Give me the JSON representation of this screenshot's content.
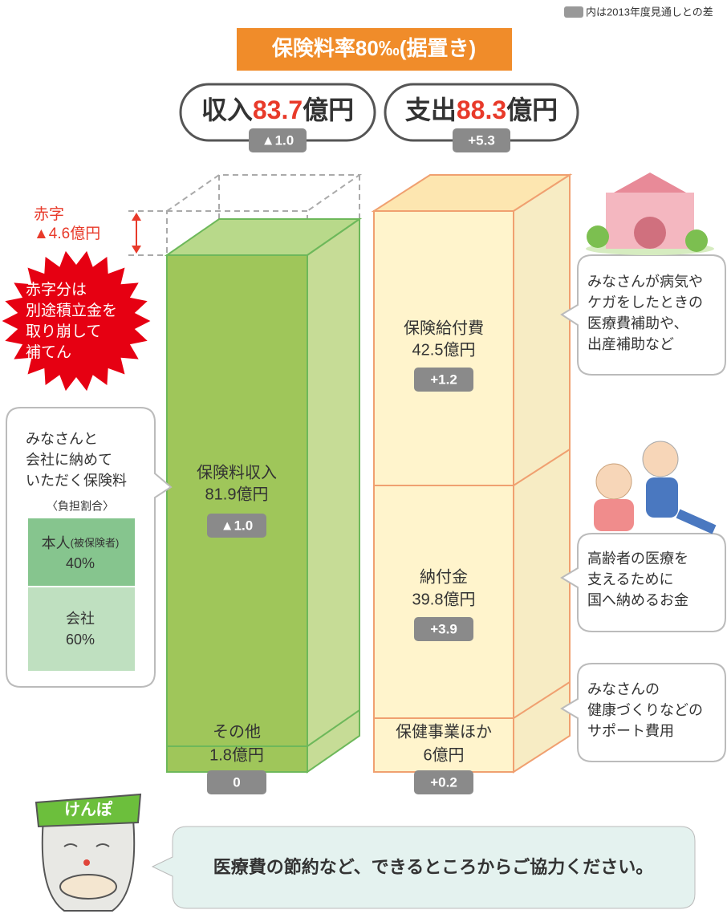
{
  "legend_note": "内は2013年度見通しとの差",
  "title": "保険料率80‰(据置き)",
  "income": {
    "label": "収入",
    "amount": "83.7",
    "unit": "億円",
    "diff": "▲1.0"
  },
  "expense": {
    "label": "支出",
    "amount": "88.3",
    "unit": "億円",
    "diff": "+5.3"
  },
  "deficit": {
    "label": "赤字",
    "amount": "▲4.6億円"
  },
  "deficit_note": [
    "赤字分は",
    "別途積立金を",
    "取り崩して",
    "補てん"
  ],
  "premium_note": [
    "みなさんと",
    "会社に納めて",
    "いただく保険料"
  ],
  "share": {
    "title": "〈負担割合〉",
    "rows": [
      {
        "label": "本人",
        "sub": "(被保険者)",
        "value": "40%"
      },
      {
        "label": "会社",
        "value": "60%"
      }
    ]
  },
  "income_items": [
    {
      "label": "保険料収入",
      "amount": "81.9億円",
      "diff": "▲1.0"
    },
    {
      "label": "その他",
      "amount": "1.8億円",
      "diff": "0"
    }
  ],
  "expense_items": [
    {
      "label": "保険給付費",
      "amount": "42.5億円",
      "diff": "+1.2",
      "note": [
        "みなさんが病気や",
        "ケガをしたときの",
        "医療費補助や、",
        "出産補助など"
      ]
    },
    {
      "label": "納付金",
      "amount": "39.8億円",
      "diff": "+3.9",
      "note": [
        "高齢者の医療を",
        "支えるために",
        "国へ納めるお金"
      ]
    },
    {
      "label": "保健事業ほか",
      "amount": "6億円",
      "diff": "+0.2",
      "note": [
        "みなさんの",
        "健康づくりなどの",
        "サポート費用"
      ]
    }
  ],
  "mascot": "けんぽ",
  "message": "医療費の節約など、できるところからご協力ください。"
}
